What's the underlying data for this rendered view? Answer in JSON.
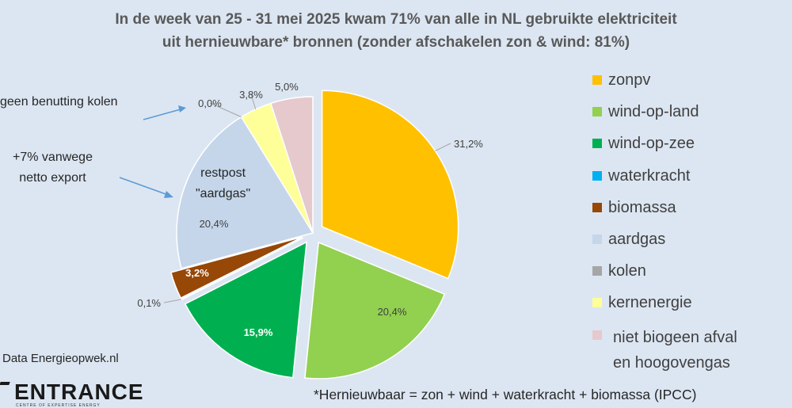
{
  "header": {
    "title_line1": "In de week van 25 - 31 mei 2025 kwam 71% van alle in NL gebruikte elektriciteit",
    "title_line2": "uit hernieuwbare* bronnen  (zonder afschakelen zon & wind: 81%)"
  },
  "annotations": {
    "coal": "geen  benutting kolen",
    "export_line1": "+7% vanwege",
    "export_line2": "netto export",
    "gas_label_line1": "restpost",
    "gas_label_line2": "\"aardgas\""
  },
  "source": "Data Energieopwek.nl",
  "logo": {
    "name": "ENTRANCE",
    "tagline": "CENTRE OF EXPERTISE ENERGY"
  },
  "footnote": "*Hernieuwbaar = zon + wind + waterkracht + biomassa (IPCC)",
  "chart_data": {
    "type": "pie",
    "title": "In de week van 25 - 31 mei 2025 kwam 71% van alle in NL gebruikte elektriciteit uit hernieuwbare* bronnen  (zonder afschakelen zon & wind: 81%)",
    "legend_position": "right",
    "slices": [
      {
        "name": "zonpv",
        "value": 31.2,
        "label": "31,2%",
        "color": "#ffc000",
        "exploded": true
      },
      {
        "name": "wind-op-land",
        "value": 20.4,
        "label": "20,4%",
        "color": "#92d050",
        "exploded": true
      },
      {
        "name": "wind-op-zee",
        "value": 15.9,
        "label": "15,9%",
        "color": "#00b050",
        "exploded": true
      },
      {
        "name": "waterkracht",
        "value": 0.1,
        "label": "0,1%",
        "color": "#00b0f0",
        "exploded": true
      },
      {
        "name": "biomassa",
        "value": 3.2,
        "label": "3,2%",
        "color": "#974706",
        "exploded": true
      },
      {
        "name": "aardgas",
        "value": 20.4,
        "label": "20,4%",
        "color": "#c5d6ea",
        "exploded": false
      },
      {
        "name": "kolen",
        "value": 0.0,
        "label": "0,0%",
        "color": "#a6a6a6",
        "exploded": false
      },
      {
        "name": "kernenergie",
        "value": 3.8,
        "label": "3,8%",
        "color": "#ffff99",
        "exploded": false
      },
      {
        "name": "niet biogeen afval en hoogovengas",
        "value": 5.0,
        "label": "5,0%",
        "color": "#e6c9cc",
        "exploded": false
      }
    ],
    "legend": [
      {
        "label": "zonpv",
        "color": "#ffc000"
      },
      {
        "label": "wind-op-land",
        "color": "#92d050"
      },
      {
        "label": "wind-op-zee",
        "color": "#00b050"
      },
      {
        "label": "waterkracht",
        "color": "#00b0f0"
      },
      {
        "label": "biomassa",
        "color": "#974706"
      },
      {
        "label": "aardgas",
        "color": "#c5d6ea"
      },
      {
        "label": "kolen",
        "color": "#a6a6a6"
      },
      {
        "label": "kernenergie",
        "color": "#ffff99"
      },
      {
        "label": "niet biogeen afval",
        "label2": "en hoogovengas",
        "color": "#e6c9cc"
      }
    ]
  }
}
